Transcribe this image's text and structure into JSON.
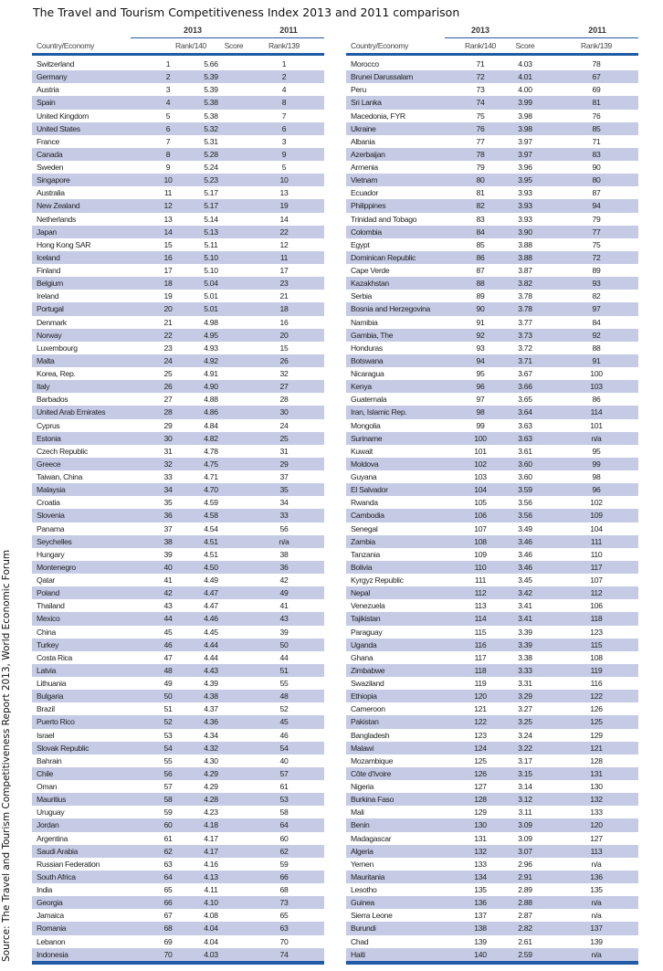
{
  "title": "The Travel and Tourism Competitiveness Index 2013 and 2011 comparison",
  "source": "Source: The Travel and Tourism Competitiveness Report 2013, World Economic Forum",
  "colors": {
    "rule": "#1f5aa6",
    "stripe": "#c5cbe5"
  },
  "header": {
    "year_2013": "2013",
    "year_2011": "2011",
    "country": "Country/Economy",
    "rank140": "Rank/140",
    "score": "Score",
    "rank139": "Rank/139"
  },
  "left_rows": [
    [
      "Switzerland",
      "1",
      "5.66",
      "1"
    ],
    [
      "Germany",
      "2",
      "5.39",
      "2"
    ],
    [
      "Austria",
      "3",
      "5.39",
      "4"
    ],
    [
      "Spain",
      "4",
      "5.38",
      "8"
    ],
    [
      "United Kingdom",
      "5",
      "5.38",
      "7"
    ],
    [
      "United States",
      "6",
      "5.32",
      "6"
    ],
    [
      "France",
      "7",
      "5.31",
      "3"
    ],
    [
      "Canada",
      "8",
      "5.28",
      "9"
    ],
    [
      "Sweden",
      "9",
      "5.24",
      "5"
    ],
    [
      "Singapore",
      "10",
      "5.23",
      "10"
    ],
    [
      "Australia",
      "11",
      "5.17",
      "13"
    ],
    [
      "New Zealand",
      "12",
      "5.17",
      "19"
    ],
    [
      "Netherlands",
      "13",
      "5.14",
      "14"
    ],
    [
      "Japan",
      "14",
      "5.13",
      "22"
    ],
    [
      "Hong Kong SAR",
      "15",
      "5.11",
      "12"
    ],
    [
      "Iceland",
      "16",
      "5.10",
      "11"
    ],
    [
      "Finland",
      "17",
      "5.10",
      "17"
    ],
    [
      "Belgium",
      "18",
      "5.04",
      "23"
    ],
    [
      "Ireland",
      "19",
      "5.01",
      "21"
    ],
    [
      "Portugal",
      "20",
      "5.01",
      "18"
    ],
    [
      "Denmark",
      "21",
      "4.98",
      "16"
    ],
    [
      "Norway",
      "22",
      "4.95",
      "20"
    ],
    [
      "Luxembourg",
      "23",
      "4.93",
      "15"
    ],
    [
      "Malta",
      "24",
      "4.92",
      "26"
    ],
    [
      "Korea, Rep.",
      "25",
      "4.91",
      "32"
    ],
    [
      "Italy",
      "26",
      "4.90",
      "27"
    ],
    [
      "Barbados",
      "27",
      "4.88",
      "28"
    ],
    [
      "United Arab Emirates",
      "28",
      "4.86",
      "30"
    ],
    [
      "Cyprus",
      "29",
      "4.84",
      "24"
    ],
    [
      "Estonia",
      "30",
      "4.82",
      "25"
    ],
    [
      "Czech Republic",
      "31",
      "4.78",
      "31"
    ],
    [
      "Greece",
      "32",
      "4.75",
      "29"
    ],
    [
      "Taiwan, China",
      "33",
      "4.71",
      "37"
    ],
    [
      "Malaysia",
      "34",
      "4.70",
      "35"
    ],
    [
      "Croatia",
      "35",
      "4.59",
      "34"
    ],
    [
      "Slovenia",
      "36",
      "4.58",
      "33"
    ],
    [
      "Panama",
      "37",
      "4.54",
      "56"
    ],
    [
      "Seychelles",
      "38",
      "4.51",
      "n/a"
    ],
    [
      "Hungary",
      "39",
      "4.51",
      "38"
    ],
    [
      "Montenegro",
      "40",
      "4.50",
      "36"
    ],
    [
      "Qatar",
      "41",
      "4.49",
      "42"
    ],
    [
      "Poland",
      "42",
      "4.47",
      "49"
    ],
    [
      "Thailand",
      "43",
      "4.47",
      "41"
    ],
    [
      "Mexico",
      "44",
      "4.46",
      "43"
    ],
    [
      "China",
      "45",
      "4.45",
      "39"
    ],
    [
      "Turkey",
      "46",
      "4.44",
      "50"
    ],
    [
      "Costa Rica",
      "47",
      "4.44",
      "44"
    ],
    [
      "Latvia",
      "48",
      "4.43",
      "51"
    ],
    [
      "Lithuania",
      "49",
      "4.39",
      "55"
    ],
    [
      "Bulgaria",
      "50",
      "4.38",
      "48"
    ],
    [
      "Brazil",
      "51",
      "4.37",
      "52"
    ],
    [
      "Puerto Rico",
      "52",
      "4.36",
      "45"
    ],
    [
      "Israel",
      "53",
      "4.34",
      "46"
    ],
    [
      "Slovak Republic",
      "54",
      "4.32",
      "54"
    ],
    [
      "Bahrain",
      "55",
      "4.30",
      "40"
    ],
    [
      "Chile",
      "56",
      "4.29",
      "57"
    ],
    [
      "Oman",
      "57",
      "4.29",
      "61"
    ],
    [
      "Mauritius",
      "58",
      "4.28",
      "53"
    ],
    [
      "Uruguay",
      "59",
      "4.23",
      "58"
    ],
    [
      "Jordan",
      "60",
      "4.18",
      "64"
    ],
    [
      "Argentina",
      "61",
      "4.17",
      "60"
    ],
    [
      "Saudi Arabia",
      "62",
      "4.17",
      "62"
    ],
    [
      "Russian Federation",
      "63",
      "4.16",
      "59"
    ],
    [
      "South Africa",
      "64",
      "4.13",
      "66"
    ],
    [
      "India",
      "65",
      "4.11",
      "68"
    ],
    [
      "Georgia",
      "66",
      "4.10",
      "73"
    ],
    [
      "Jamaica",
      "67",
      "4.08",
      "65"
    ],
    [
      "Romania",
      "68",
      "4.04",
      "63"
    ],
    [
      "Lebanon",
      "69",
      "4.04",
      "70"
    ],
    [
      "Indonesia",
      "70",
      "4.03",
      "74"
    ]
  ],
  "right_rows": [
    [
      "Morocco",
      "71",
      "4.03",
      "78"
    ],
    [
      "Brunei Darussalam",
      "72",
      "4.01",
      "67"
    ],
    [
      "Peru",
      "73",
      "4.00",
      "69"
    ],
    [
      "Sri Lanka",
      "74",
      "3.99",
      "81"
    ],
    [
      "Macedonia, FYR",
      "75",
      "3.98",
      "76"
    ],
    [
      "Ukraine",
      "76",
      "3.98",
      "85"
    ],
    [
      "Albania",
      "77",
      "3.97",
      "71"
    ],
    [
      "Azerbaijan",
      "78",
      "3.97",
      "83"
    ],
    [
      "Armenia",
      "79",
      "3.96",
      "90"
    ],
    [
      "Vietnam",
      "80",
      "3.95",
      "80"
    ],
    [
      "Ecuador",
      "81",
      "3.93",
      "87"
    ],
    [
      "Philippines",
      "82",
      "3.93",
      "94"
    ],
    [
      "Trinidad and Tobago",
      "83",
      "3.93",
      "79"
    ],
    [
      "Colombia",
      "84",
      "3.90",
      "77"
    ],
    [
      "Egypt",
      "85",
      "3.88",
      "75"
    ],
    [
      "Dominican Republic",
      "86",
      "3.88",
      "72"
    ],
    [
      "Cape Verde",
      "87",
      "3.87",
      "89"
    ],
    [
      "Kazakhstan",
      "88",
      "3.82",
      "93"
    ],
    [
      "Serbia",
      "89",
      "3.78",
      "82"
    ],
    [
      "Bosnia and Herzegovina",
      "90",
      "3.78",
      "97"
    ],
    [
      "Namibia",
      "91",
      "3.77",
      "84"
    ],
    [
      "Gambia, The",
      "92",
      "3.73",
      "92"
    ],
    [
      "Honduras",
      "93",
      "3.72",
      "88"
    ],
    [
      "Botswana",
      "94",
      "3.71",
      "91"
    ],
    [
      "Nicaragua",
      "95",
      "3.67",
      "100"
    ],
    [
      "Kenya",
      "96",
      "3.66",
      "103"
    ],
    [
      "Guatemala",
      "97",
      "3.65",
      "86"
    ],
    [
      "Iran, Islamic Rep.",
      "98",
      "3.64",
      "114"
    ],
    [
      "Mongolia",
      "99",
      "3.63",
      "101"
    ],
    [
      "Suriname",
      "100",
      "3.63",
      "n/a"
    ],
    [
      "Kuwait",
      "101",
      "3.61",
      "95"
    ],
    [
      "Moldova",
      "102",
      "3.60",
      "99"
    ],
    [
      "Guyana",
      "103",
      "3.60",
      "98"
    ],
    [
      "El Salvador",
      "104",
      "3.59",
      "96"
    ],
    [
      "Rwanda",
      "105",
      "3.56",
      "102"
    ],
    [
      "Cambodia",
      "106",
      "3.56",
      "109"
    ],
    [
      "Senegal",
      "107",
      "3.49",
      "104"
    ],
    [
      "Zambia",
      "108",
      "3.46",
      "111"
    ],
    [
      "Tanzania",
      "109",
      "3.46",
      "110"
    ],
    [
      "Bolivia",
      "110",
      "3.46",
      "117"
    ],
    [
      "Kyrgyz Republic",
      "111",
      "3.45",
      "107"
    ],
    [
      "Nepal",
      "112",
      "3.42",
      "112"
    ],
    [
      "Venezuela",
      "113",
      "3.41",
      "106"
    ],
    [
      "Tajikistan",
      "114",
      "3.41",
      "118"
    ],
    [
      "Paraguay",
      "115",
      "3.39",
      "123"
    ],
    [
      "Uganda",
      "116",
      "3.39",
      "115"
    ],
    [
      "Ghana",
      "117",
      "3.38",
      "108"
    ],
    [
      "Zimbabwe",
      "118",
      "3.33",
      "119"
    ],
    [
      "Swaziland",
      "119",
      "3.31",
      "116"
    ],
    [
      "Ethiopia",
      "120",
      "3.29",
      "122"
    ],
    [
      "Cameroon",
      "121",
      "3.27",
      "126"
    ],
    [
      "Pakistan",
      "122",
      "3.25",
      "125"
    ],
    [
      "Bangladesh",
      "123",
      "3.24",
      "129"
    ],
    [
      "Malawi",
      "124",
      "3.22",
      "121"
    ],
    [
      "Mozambique",
      "125",
      "3.17",
      "128"
    ],
    [
      "Côte d'Ivoire",
      "126",
      "3.15",
      "131"
    ],
    [
      "Nigeria",
      "127",
      "3.14",
      "130"
    ],
    [
      "Burkina Faso",
      "128",
      "3.12",
      "132"
    ],
    [
      "Mali",
      "129",
      "3.11",
      "133"
    ],
    [
      "Benin",
      "130",
      "3.09",
      "120"
    ],
    [
      "Madagascar",
      "131",
      "3.09",
      "127"
    ],
    [
      "Algeria",
      "132",
      "3.07",
      "113"
    ],
    [
      "Yemen",
      "133",
      "2.96",
      "n/a"
    ],
    [
      "Mauritania",
      "134",
      "2.91",
      "136"
    ],
    [
      "Lesotho",
      "135",
      "2.89",
      "135"
    ],
    [
      "Guinea",
      "136",
      "2.88",
      "n/a"
    ],
    [
      "Sierra Leone",
      "137",
      "2.87",
      "n/a"
    ],
    [
      "Burundi",
      "138",
      "2.82",
      "137"
    ],
    [
      "Chad",
      "139",
      "2.61",
      "139"
    ],
    [
      "Haiti",
      "140",
      "2.59",
      "n/a"
    ]
  ]
}
